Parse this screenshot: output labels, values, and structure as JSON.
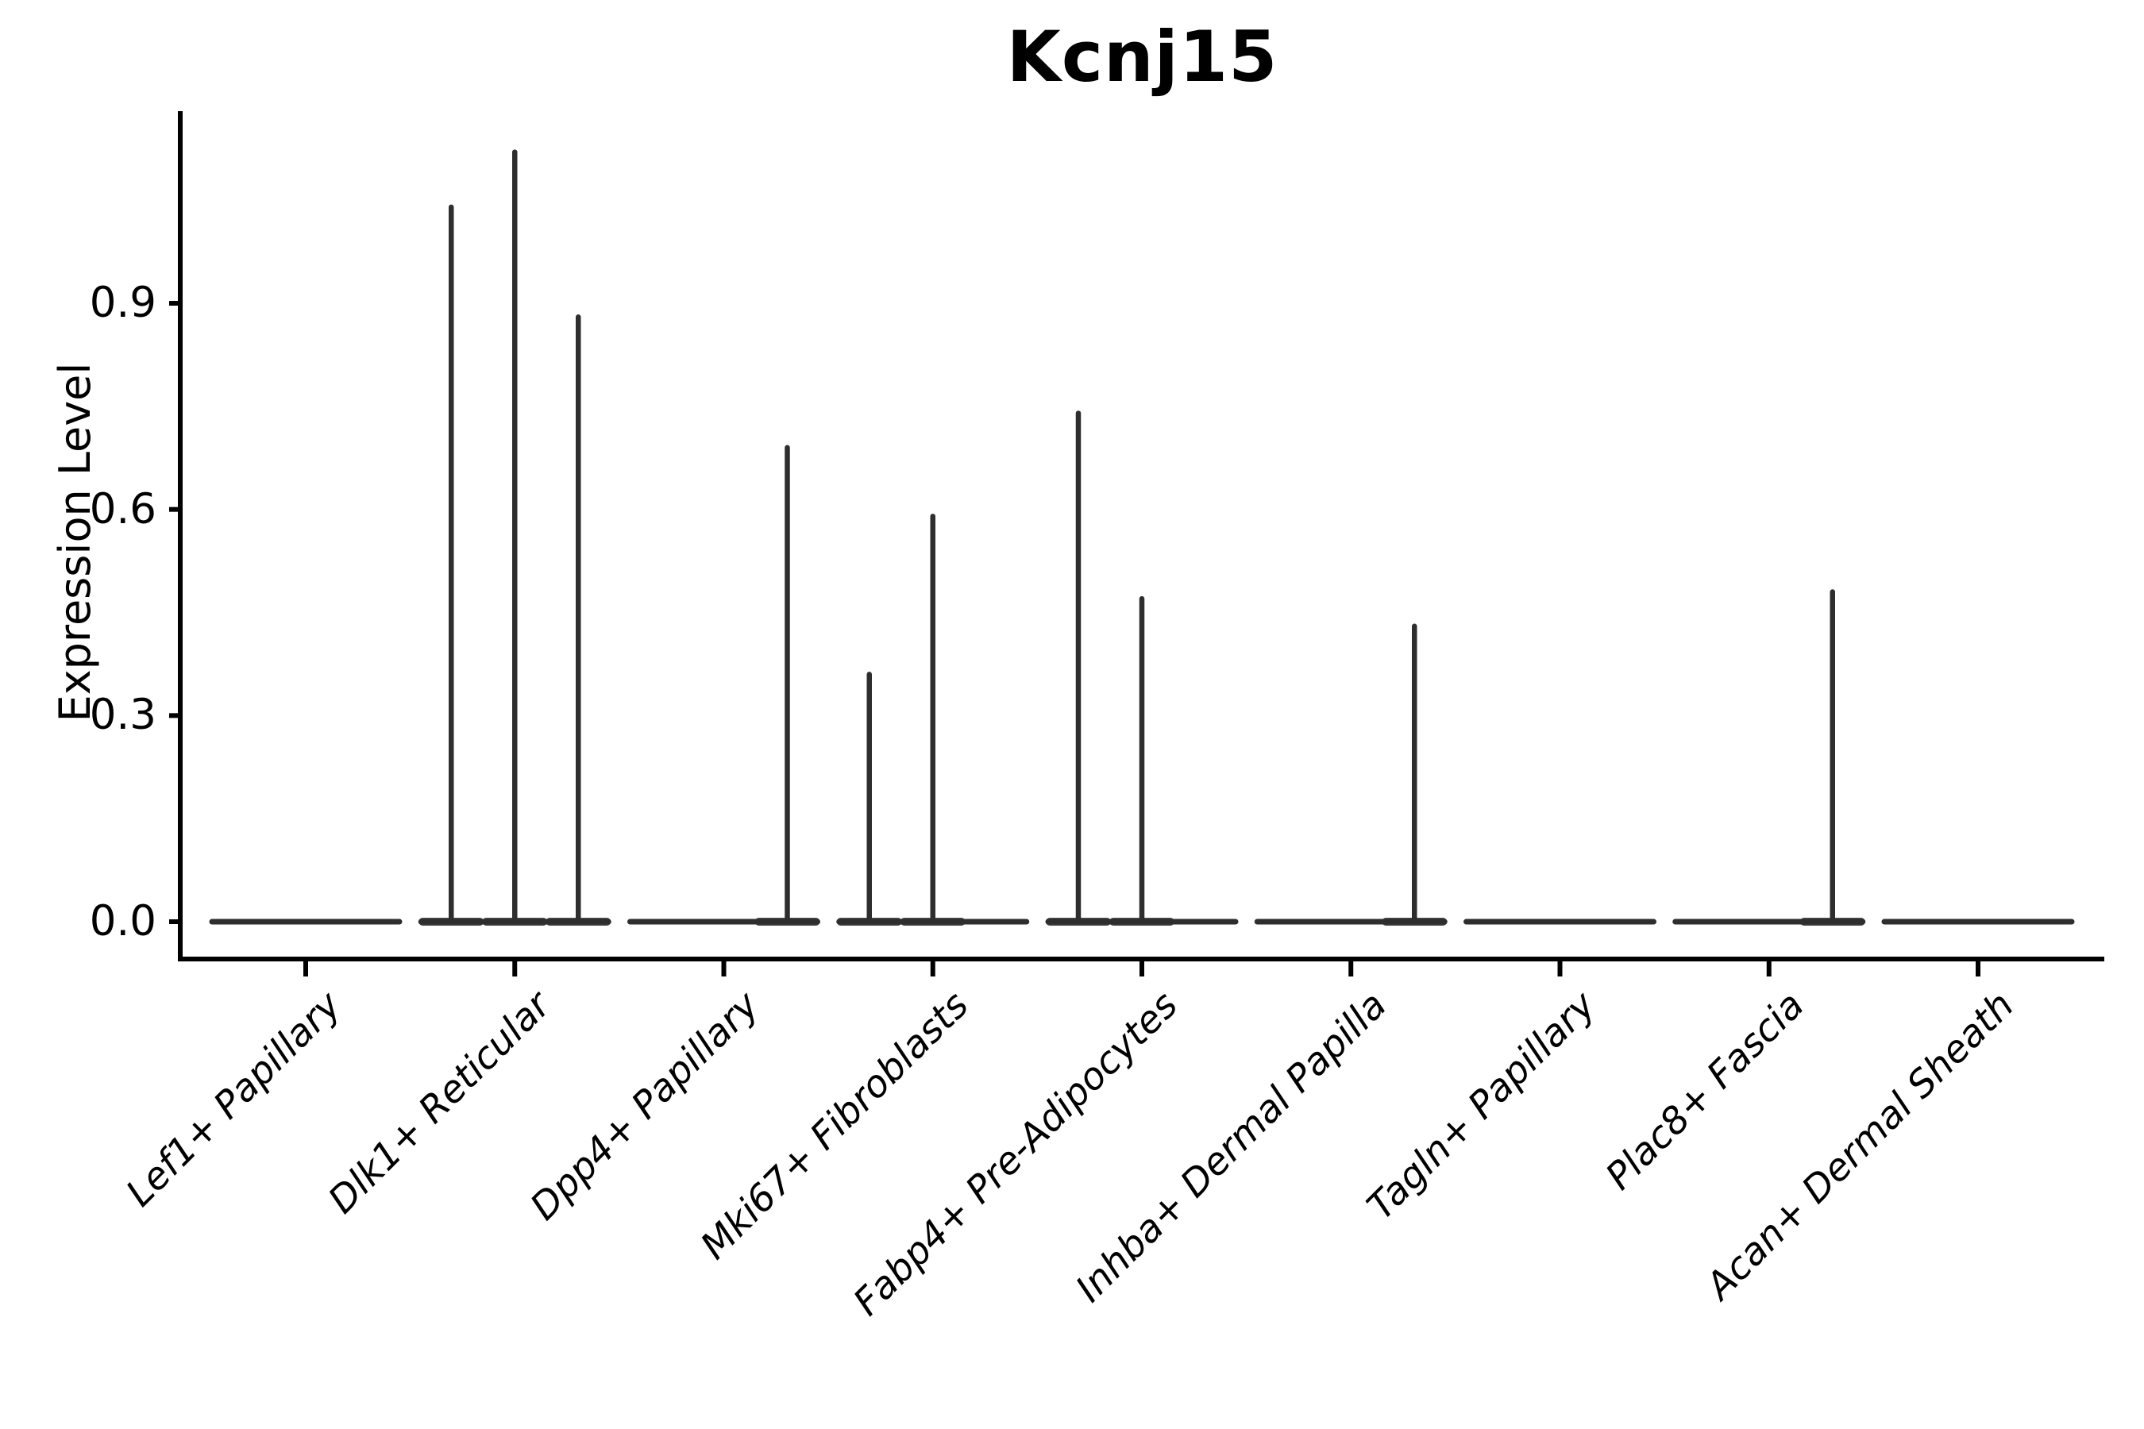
{
  "figure": {
    "title": "Kcnj15",
    "ylabel": "Expression Level"
  },
  "chart_data": {
    "type": "violin",
    "title": "Kcnj15",
    "xlabel": "",
    "ylabel": "Expression Level",
    "ylim": [
      0,
      1.18
    ],
    "grid": false,
    "legend": null,
    "yticks": [
      {
        "value": 0.0,
        "label": "0.0"
      },
      {
        "value": 0.3,
        "label": "0.3"
      },
      {
        "value": 0.6,
        "label": "0.6"
      },
      {
        "value": 0.9,
        "label": "0.9"
      }
    ],
    "categories": [
      "Lef1+ Papillary",
      "Dlk1+ Reticular",
      "Dpp4+ Papillary",
      "Mki67+ Fibroblasts",
      "Fabp4+ Pre-Adipocytes",
      "Inhba+ Dermal Papilla",
      "Tagln+ Papillary",
      "Plac8+ Fascia",
      "Acan+ Dermal Sheath"
    ],
    "violins": [
      {
        "category": "Lef1+ Papillary",
        "base_value": 0.0,
        "spikes": []
      },
      {
        "category": "Dlk1+ Reticular",
        "base_value": 0.0,
        "spikes": [
          {
            "slot": "left",
            "max": 1.04
          },
          {
            "slot": "center",
            "max": 1.12
          },
          {
            "slot": "right",
            "max": 0.88
          }
        ]
      },
      {
        "category": "Dpp4+ Papillary",
        "base_value": 0.0,
        "spikes": [
          {
            "slot": "right",
            "max": 0.69
          }
        ]
      },
      {
        "category": "Mki67+ Fibroblasts",
        "base_value": 0.0,
        "spikes": [
          {
            "slot": "left",
            "max": 0.36
          },
          {
            "slot": "center",
            "max": 0.59
          }
        ]
      },
      {
        "category": "Fabp4+ Pre-Adipocytes",
        "base_value": 0.0,
        "spikes": [
          {
            "slot": "left",
            "max": 0.74
          },
          {
            "slot": "center",
            "max": 0.47
          }
        ]
      },
      {
        "category": "Inhba+ Dermal Papilla",
        "base_value": 0.0,
        "spikes": [
          {
            "slot": "right",
            "max": 0.43
          }
        ]
      },
      {
        "category": "Tagln+ Papillary",
        "base_value": 0.0,
        "spikes": []
      },
      {
        "category": "Plac8+ Fascia",
        "base_value": 0.0,
        "spikes": [
          {
            "slot": "right",
            "max": 0.48
          }
        ]
      },
      {
        "category": "Acan+ Dermal Sheath",
        "base_value": 0.0,
        "spikes": []
      }
    ],
    "colors": {
      "violin_line": "#2e2e2e",
      "violin_flare": "#474747",
      "axis": "#000000",
      "text": "#000000",
      "background": "#ffffff"
    }
  }
}
